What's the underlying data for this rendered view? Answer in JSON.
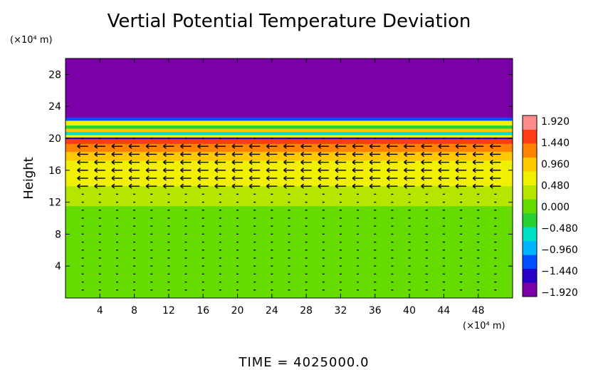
{
  "chart_data": {
    "type": "heatmap",
    "title": "Vertial Potential Temperature Deviation",
    "ylabel": "Height",
    "x_unit": "(×10⁴ m)",
    "y_unit": "(×10⁴ m)",
    "footer": "TIME  =  4025000.0",
    "xlim": [
      0,
      52
    ],
    "ylim": [
      0,
      30
    ],
    "x_ticks": [
      4,
      8,
      12,
      16,
      20,
      24,
      28,
      32,
      36,
      40,
      44,
      48
    ],
    "y_ticks": [
      4,
      8,
      12,
      16,
      20,
      24,
      28
    ],
    "colorbar": {
      "min": -1.92,
      "max": 1.92,
      "labels": [
        "1.920",
        "1.440",
        "0.960",
        "0.480",
        "0.000",
        "−0.480",
        "−0.960",
        "−1.440",
        "−1.920"
      ],
      "colors": [
        "#7a00a8",
        "#2a00c8",
        "#0050ff",
        "#00b4ff",
        "#00e0c8",
        "#28d232",
        "#64dc00",
        "#b4e600",
        "#f0f000",
        "#ffc800",
        "#ff8200",
        "#ff3c14",
        "#ff8c8c"
      ]
    },
    "layers": [
      {
        "y0": 22.6,
        "y1": 30,
        "value": -1.92
      },
      {
        "y0": 22.2,
        "y1": 22.6,
        "value": -1.2
      },
      {
        "y0": 21.6,
        "y1": 22.2,
        "value": 0.6
      },
      {
        "y0": 21.2,
        "y1": 21.6,
        "value": -0.3
      },
      {
        "y0": 20.8,
        "y1": 21.2,
        "value": 0.9
      },
      {
        "y0": 20.4,
        "y1": 20.8,
        "value": -0.6
      },
      {
        "y0": 20.1,
        "y1": 20.4,
        "value": 0.5
      },
      {
        "y0": 19.9,
        "y1": 20.1,
        "value": -1.5
      },
      {
        "y0": 19.3,
        "y1": 19.9,
        "value": 1.5
      },
      {
        "y0": 18.3,
        "y1": 19.3,
        "value": 1.2
      },
      {
        "y0": 17.2,
        "y1": 18.3,
        "value": 0.96
      },
      {
        "y0": 15.8,
        "y1": 17.2,
        "value": 0.72
      },
      {
        "y0": 14.0,
        "y1": 15.8,
        "value": 0.45
      },
      {
        "y0": 11.5,
        "y1": 14.0,
        "value": 0.2
      },
      {
        "y0": 0,
        "y1": 11.5,
        "value": 0.05
      }
    ],
    "vector_field": {
      "x_start": 2,
      "x_step": 2,
      "x_end": 50,
      "y_start": 1,
      "y_step": 1,
      "y_end": 20,
      "strong_wind_band": [
        14,
        19.5
      ],
      "wind_direction": "westward"
    }
  }
}
